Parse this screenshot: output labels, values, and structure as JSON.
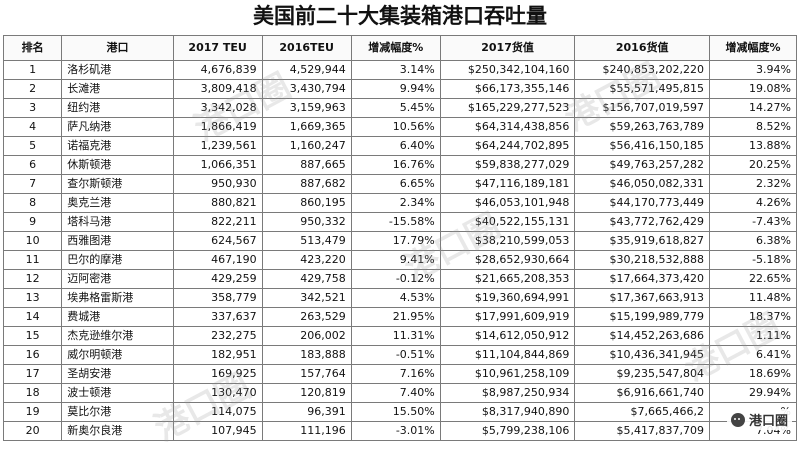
{
  "title": "美国前二十大集装箱港口吞吐量",
  "headers": [
    "排名",
    "港口",
    "2017 TEU",
    "2016TEU",
    "增减幅度%",
    "2017货值",
    "2016货值",
    "增减幅度%"
  ],
  "rows": [
    [
      "1",
      "洛杉矶港",
      "4,676,839",
      "4,529,944",
      "3.14%",
      "$250,342,104,160",
      "$240,853,202,220",
      "3.94%"
    ],
    [
      "2",
      "长滩港",
      "3,809,418",
      "3,430,794",
      "9.94%",
      "$66,173,355,146",
      "$55,571,495,815",
      "19.08%"
    ],
    [
      "3",
      "纽约港",
      "3,342,028",
      "3,159,963",
      "5.45%",
      "$165,229,277,523",
      "$156,707,019,597",
      "14.27%"
    ],
    [
      "4",
      "萨凡纳港",
      "1,866,419",
      "1,669,365",
      "10.56%",
      "$64,314,438,856",
      "$59,263,763,789",
      "8.52%"
    ],
    [
      "5",
      "诺福克港",
      "1,239,561",
      "1,160,247",
      "6.40%",
      "$64,244,702,895",
      "$56,416,150,185",
      "13.88%"
    ],
    [
      "6",
      "休斯顿港",
      "1,066,351",
      "887,665",
      "16.76%",
      "$59,838,277,029",
      "$49,763,257,282",
      "20.25%"
    ],
    [
      "7",
      "查尔斯顿港",
      "950,930",
      "887,682",
      "6.65%",
      "$47,116,189,181",
      "$46,050,082,331",
      "2.32%"
    ],
    [
      "8",
      "奥克兰港",
      "880,821",
      "860,195",
      "2.34%",
      "$46,053,101,948",
      "$44,170,773,449",
      "4.26%"
    ],
    [
      "9",
      "塔科马港",
      "822,211",
      "950,332",
      "-15.58%",
      "$40,522,155,131",
      "$43,772,762,429",
      "-7.43%"
    ],
    [
      "10",
      "西雅图港",
      "624,567",
      "513,479",
      "17.79%",
      "$38,210,599,053",
      "$35,919,618,827",
      "6.38%"
    ],
    [
      "11",
      "巴尔的摩港",
      "467,190",
      "423,220",
      "9.41%",
      "$28,652,930,664",
      "$30,218,532,888",
      "-5.18%"
    ],
    [
      "12",
      "迈阿密港",
      "429,259",
      "429,758",
      "-0.12%",
      "$21,665,208,353",
      "$17,664,373,420",
      "22.65%"
    ],
    [
      "13",
      "埃弗格雷斯港",
      "358,779",
      "342,521",
      "4.53%",
      "$19,360,694,991",
      "$17,367,663,913",
      "11.48%"
    ],
    [
      "14",
      "费城港",
      "337,637",
      "263,529",
      "21.95%",
      "$17,991,609,919",
      "$15,199,989,779",
      "18.37%"
    ],
    [
      "15",
      "杰克逊维尔港",
      "232,275",
      "206,002",
      "11.31%",
      "$14,612,050,912",
      "$14,452,263,686",
      "1.11%"
    ],
    [
      "16",
      "威尔明顿港",
      "182,951",
      "183,888",
      "-0.51%",
      "$11,104,844,869",
      "$10,436,341,945",
      "6.41%"
    ],
    [
      "17",
      "圣胡安港",
      "169,925",
      "157,764",
      "7.16%",
      "$10,961,258,109",
      "$9,235,547,804",
      "18.69%"
    ],
    [
      "18",
      "波士顿港",
      "130,470",
      "120,819",
      "7.40%",
      "$8,987,250,934",
      "$6,916,661,740",
      "29.94%"
    ],
    [
      "19",
      "莫比尔港",
      "114,075",
      "96,391",
      "15.50%",
      "$8,317,940,890",
      "$7,665,466,2",
      "%"
    ],
    [
      "20",
      "新奥尔良港",
      "107,945",
      "111,196",
      "-3.01%",
      "$5,799,238,106",
      "$5,417,837,709",
      "7.04%"
    ]
  ],
  "watermark": "港口圈",
  "brand": {
    "label": "港口圈",
    "icon": "chat-bubble-icon"
  }
}
